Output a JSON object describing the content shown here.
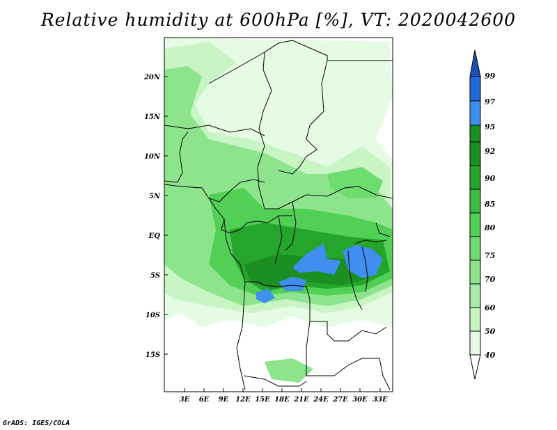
{
  "title": "Relative humidity at 600hPa [%], VT: 2020042600",
  "credit": "GrADS: IGES/COLA",
  "map": {
    "lat_labels": [
      "20N",
      "15N",
      "10N",
      "5N",
      "EQ",
      "5S",
      "10S",
      "15S"
    ],
    "lon_labels": [
      "3E",
      "6E",
      "9E",
      "12E",
      "15E",
      "18E",
      "21E",
      "24E",
      "27E",
      "30E",
      "33E"
    ]
  },
  "colorbar": {
    "levels": [
      "40",
      "50",
      "60",
      "70",
      "75",
      "80",
      "85",
      "90",
      "92",
      "95",
      "97",
      "99"
    ],
    "colors": [
      "#ffffff",
      "#e6fbe4",
      "#c9f4c3",
      "#a8ebaa",
      "#8de48d",
      "#6fdc6f",
      "#52cf55",
      "#3bbd43",
      "#25a52c",
      "#1b8f22",
      "#3f8ef0",
      "#2569d8",
      "#1e4fb5"
    ]
  }
}
